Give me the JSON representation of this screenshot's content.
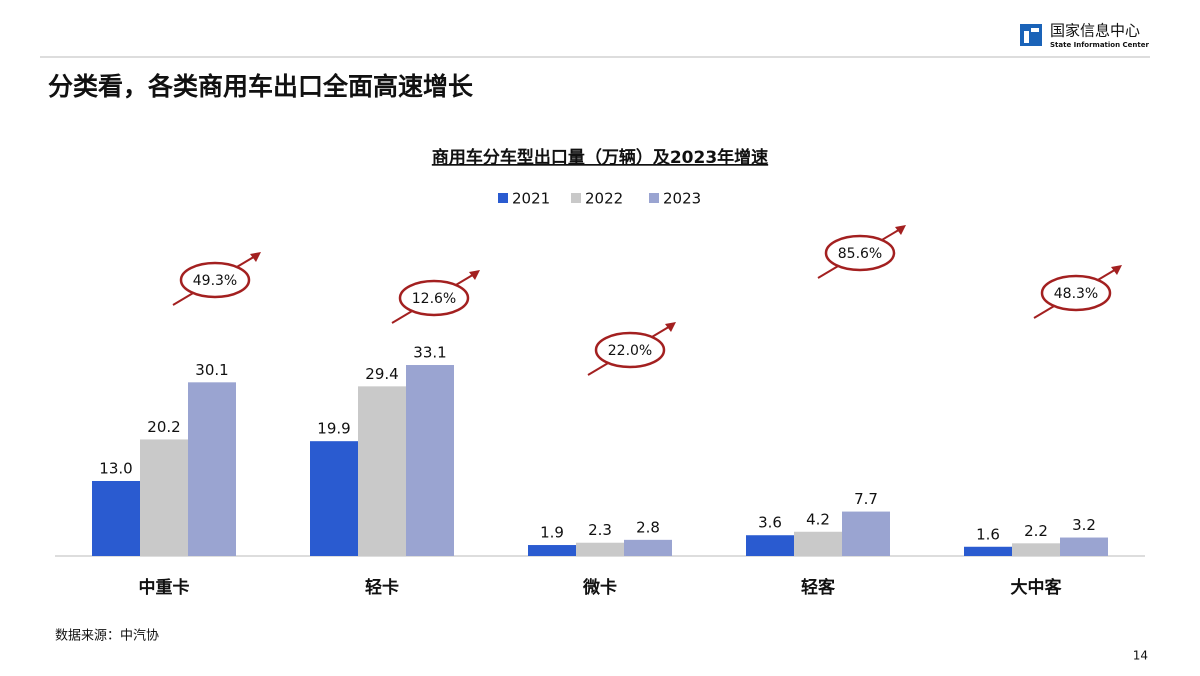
{
  "header": {
    "title": "分类看，各类商用车出口全面高速增长",
    "logo_cn": "国家信息中心",
    "logo_en": "State Information Center"
  },
  "chart_data": {
    "type": "bar",
    "title": "商用车分车型出口量（万辆）及2023年增速",
    "categories": [
      "中重卡",
      "轻卡",
      "微卡",
      "轻客",
      "大中客"
    ],
    "series": [
      {
        "name": "2021",
        "color": "#2a5bd0",
        "values": [
          13.0,
          19.9,
          1.9,
          3.6,
          1.6
        ],
        "value_labels": [
          "13.0",
          "19.9",
          "1.9",
          "3.6",
          "1.6"
        ]
      },
      {
        "name": "2022",
        "color": "#c9c9c9",
        "values": [
          20.2,
          29.4,
          2.3,
          4.2,
          2.2
        ],
        "value_labels": [
          "20.2",
          "29.4",
          "2.3",
          "4.2",
          "2.2"
        ]
      },
      {
        "name": "2023",
        "color": "#9aa4d1",
        "values": [
          30.1,
          33.1,
          2.8,
          7.7,
          3.2
        ],
        "value_labels": [
          "30.1",
          "33.1",
          "2.8",
          "7.7",
          "3.2"
        ]
      }
    ],
    "growth": {
      "values": [
        49.3,
        12.6,
        22.0,
        85.6,
        48.3
      ],
      "value_labels": [
        "49.3%",
        "12.6%",
        "22.0%",
        "85.6%",
        "48.3%"
      ],
      "color": "#a32020"
    },
    "legend": "top"
  },
  "footer": {
    "source": "数据来源：中汽协",
    "page_number": 14
  }
}
